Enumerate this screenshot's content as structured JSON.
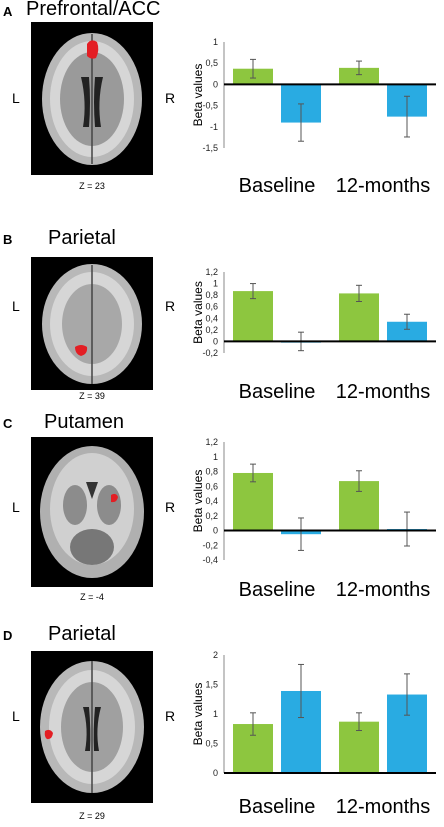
{
  "panels": [
    {
      "letter": "A",
      "title": "Prefrontal/ACC",
      "left_label": "L",
      "right_label": "R",
      "z_label": "Z = 23",
      "chart_data": {
        "type": "bar",
        "categories": [
          "Baseline",
          "12-months"
        ],
        "ylabel": "Beta values",
        "ylim": [
          -1.5,
          1
        ],
        "yticks": [
          "1",
          "0,5",
          "0",
          "-0,5",
          "-1",
          "-1,5"
        ],
        "ytick_values": [
          1,
          0.5,
          0,
          -0.5,
          -1,
          -1.5
        ],
        "series": [
          {
            "color": "#8dc63f",
            "values": [
              0.37,
              0.39
            ],
            "errors": [
              0.22,
              0.16
            ]
          },
          {
            "color": "#29abe2",
            "values": [
              -0.9,
              -0.76
            ],
            "errors": [
              0.44,
              0.48
            ]
          }
        ]
      }
    },
    {
      "letter": "B",
      "title": "Parietal",
      "left_label": "L",
      "right_label": "R",
      "z_label": "Z = 39",
      "chart_data": {
        "type": "bar",
        "categories": [
          "Baseline",
          "12-months"
        ],
        "ylabel": "Beta values",
        "ylim": [
          -0.2,
          1.2
        ],
        "yticks": [
          "1,2",
          "1",
          "0,8",
          "0,6",
          "0,4",
          "0,2",
          "0",
          "-0,2"
        ],
        "ytick_values": [
          1.2,
          1,
          0.8,
          0.6,
          0.4,
          0.2,
          0,
          -0.2
        ],
        "series": [
          {
            "color": "#8dc63f",
            "values": [
              0.87,
              0.83
            ],
            "errors": [
              0.13,
              0.14
            ]
          },
          {
            "color": "#29abe2",
            "values": [
              0.0,
              0.34
            ],
            "errors": [
              0.16,
              0.13
            ]
          }
        ]
      }
    },
    {
      "letter": "C",
      "title": "Putamen",
      "left_label": "L",
      "right_label": "R",
      "z_label": "Z = -4",
      "chart_data": {
        "type": "bar",
        "categories": [
          "Baseline",
          "12-months"
        ],
        "ylabel": "Beta values",
        "ylim": [
          -0.4,
          1.2
        ],
        "yticks": [
          "1,2",
          "1",
          "0,8",
          "0,6",
          "0,4",
          "0,2",
          "0",
          "-0,2",
          "-0,4"
        ],
        "ytick_values": [
          1.2,
          1,
          0.8,
          0.6,
          0.4,
          0.2,
          0,
          -0.2,
          -0.4
        ],
        "series": [
          {
            "color": "#8dc63f",
            "values": [
              0.78,
              0.67
            ],
            "errors": [
              0.12,
              0.14
            ]
          },
          {
            "color": "#29abe2",
            "values": [
              -0.05,
              0.02
            ],
            "errors": [
              0.22,
              0.23
            ]
          }
        ]
      }
    },
    {
      "letter": "D",
      "title": "Parietal",
      "left_label": "L",
      "right_label": "R",
      "z_label": "Z = 29",
      "chart_data": {
        "type": "bar",
        "categories": [
          "Baseline",
          "12-months"
        ],
        "ylabel": "Beta values",
        "ylim": [
          0,
          2
        ],
        "yticks": [
          "2",
          "1,5",
          "1",
          "0,5",
          "0"
        ],
        "ytick_values": [
          2,
          1.5,
          1,
          0.5,
          0
        ],
        "series": [
          {
            "color": "#8dc63f",
            "values": [
              0.83,
              0.87
            ],
            "errors": [
              0.19,
              0.15
            ]
          },
          {
            "color": "#29abe2",
            "values": [
              1.39,
              1.33
            ],
            "errors": [
              0.45,
              0.35
            ]
          }
        ]
      }
    }
  ]
}
